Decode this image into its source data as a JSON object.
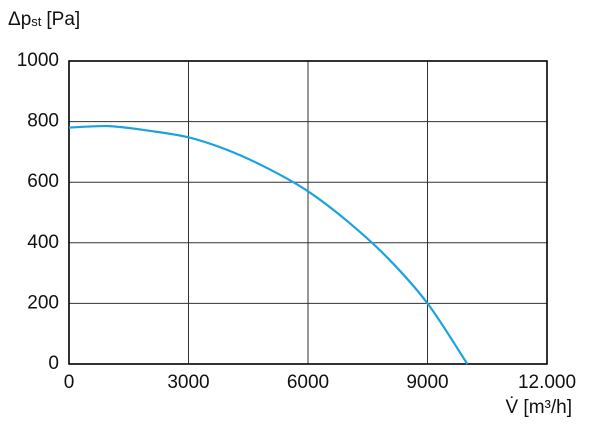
{
  "chart_data": {
    "type": "line",
    "ylabel": [
      "Δp",
      "st",
      "[Pa]"
    ],
    "xlabel": "V̇ [m³/h]",
    "x": [
      0,
      1000,
      2000,
      3000,
      4000,
      5000,
      6000,
      7000,
      8000,
      9000,
      10000
    ],
    "series": [
      {
        "color": "#1ba3e0",
        "values": [
          780,
          785,
          770,
          748,
          705,
          645,
          570,
          470,
          350,
          200,
          0
        ]
      }
    ],
    "xlim": [
      0,
      12000
    ],
    "xticks": [
      0,
      3000,
      6000,
      9000,
      {
        "value": 12000,
        "label": "12.000"
      }
    ],
    "ylim": [
      0,
      1000
    ],
    "yticks": [
      0,
      200,
      400,
      600,
      800,
      1000
    ],
    "grid": true
  }
}
